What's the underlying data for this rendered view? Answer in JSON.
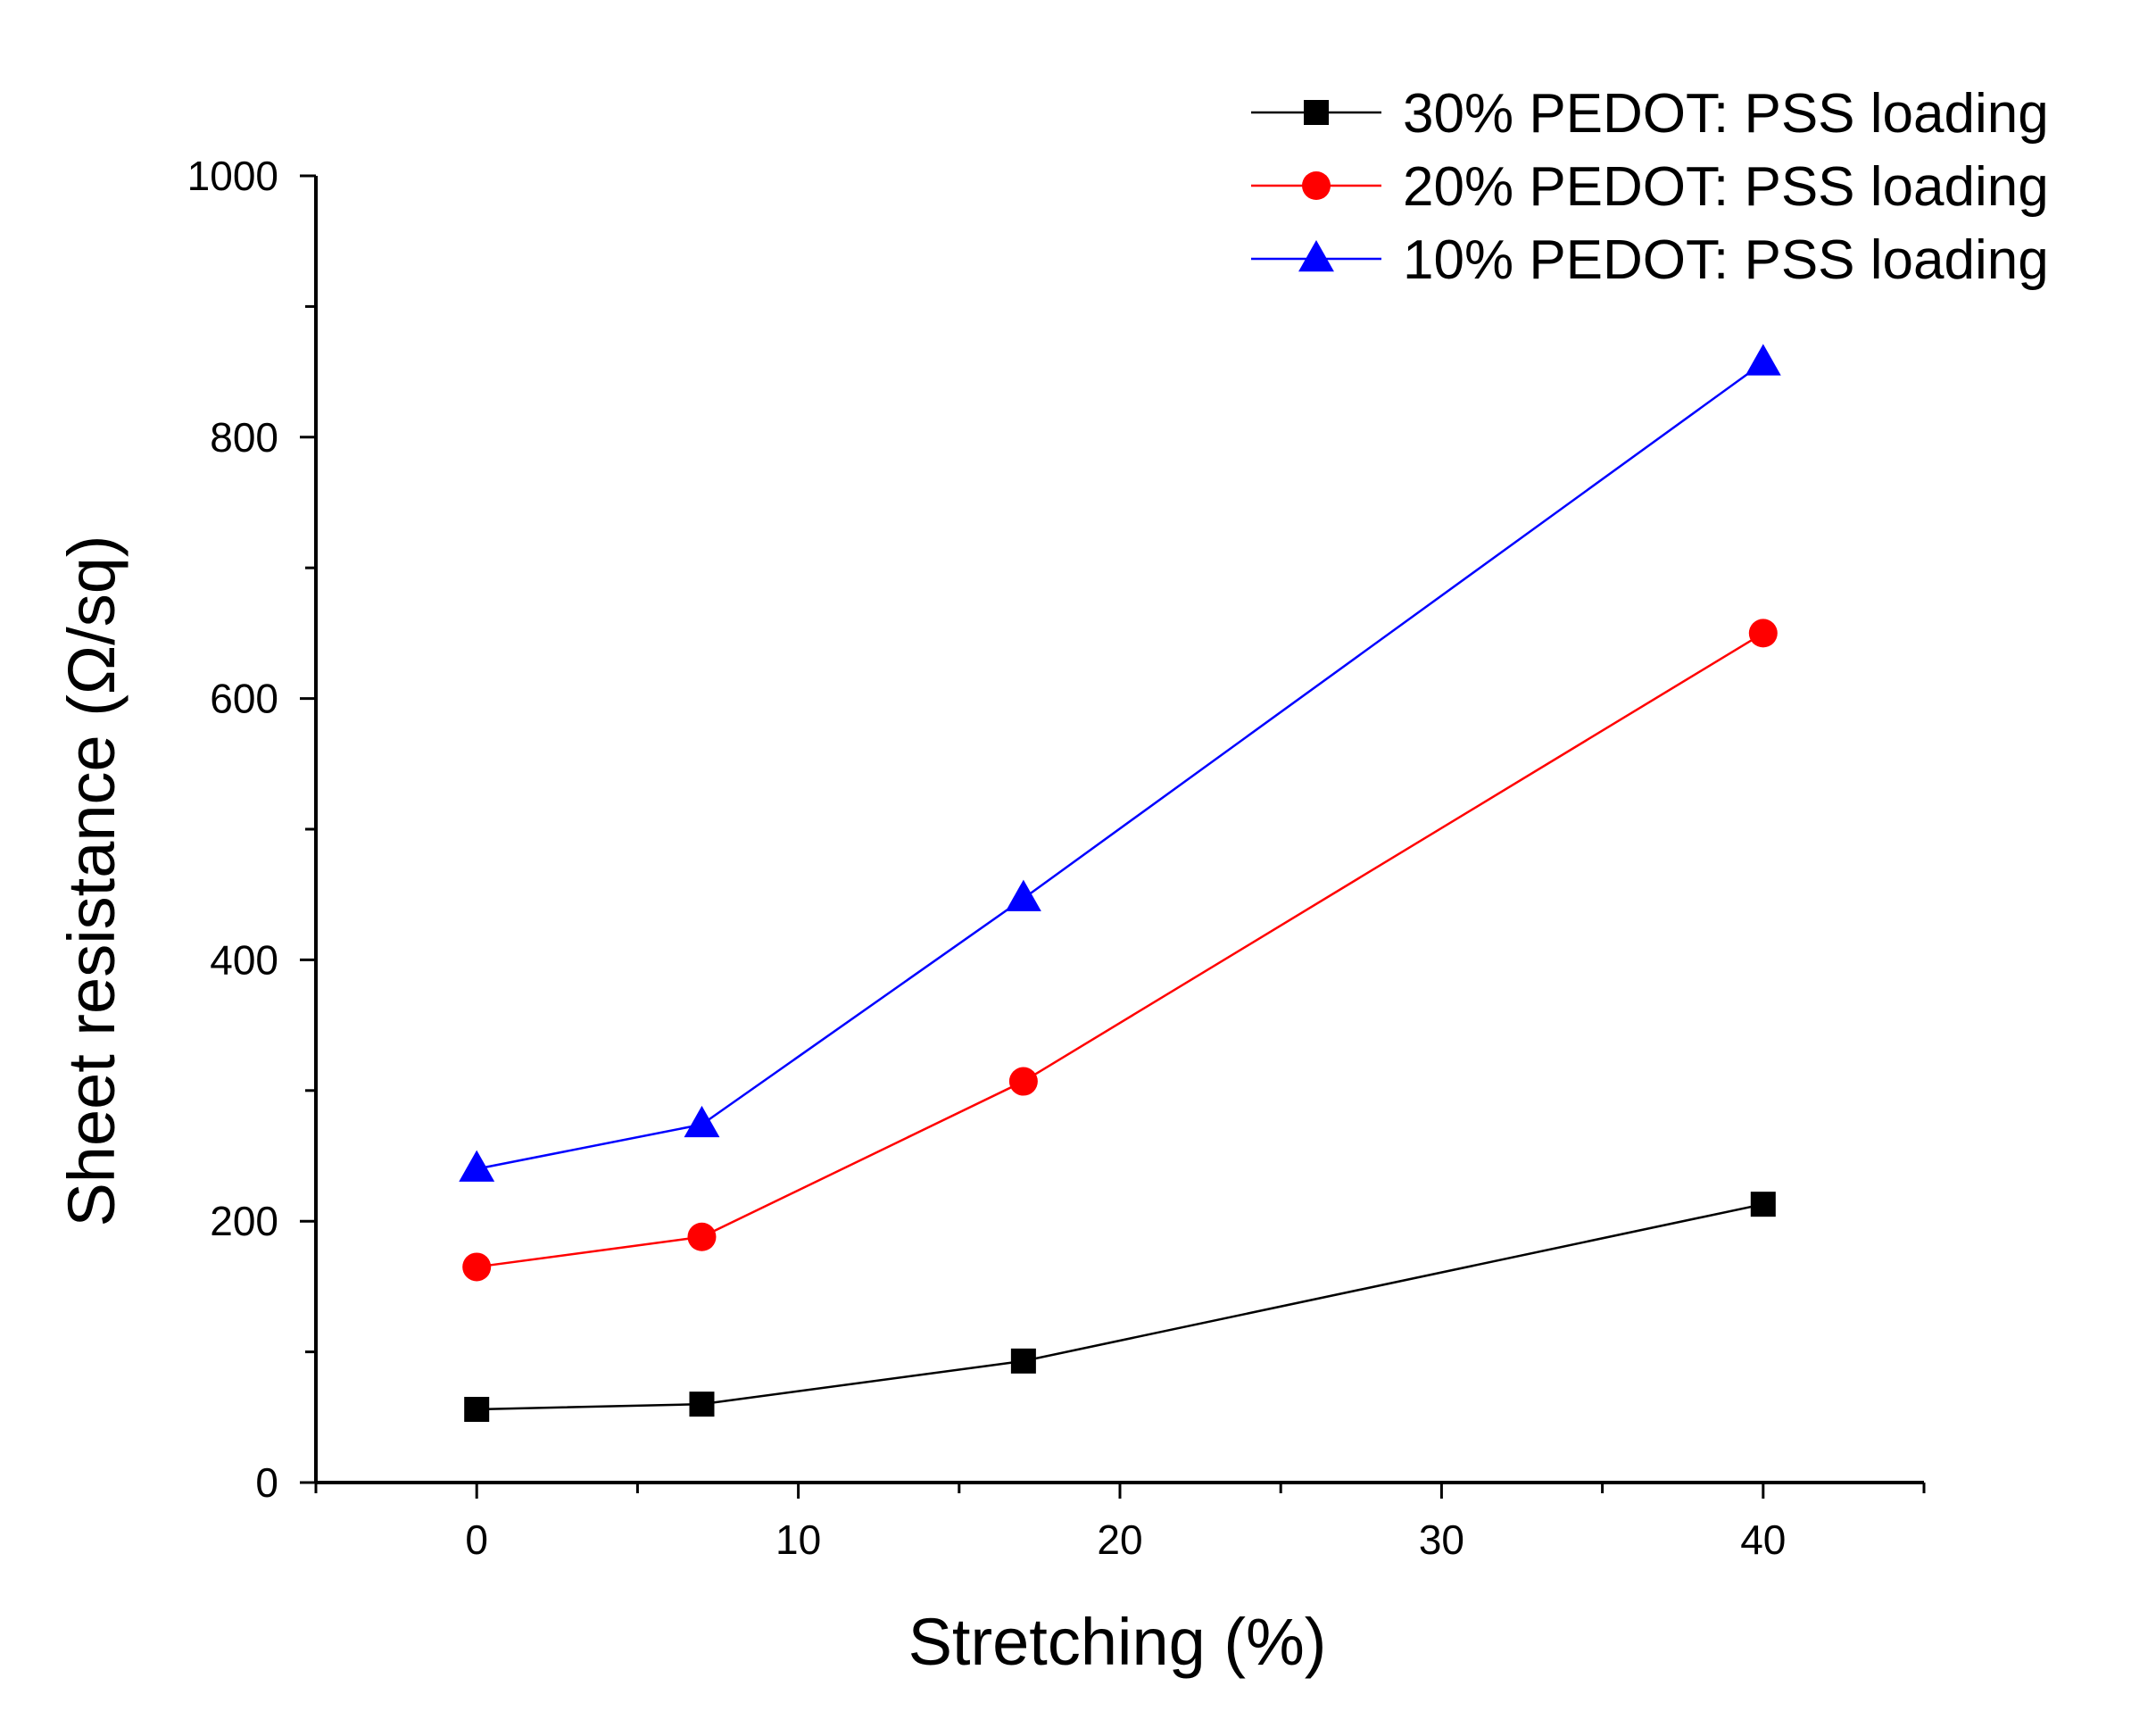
{
  "chart_data": {
    "type": "line",
    "title": "",
    "xlabel": "Stretching (%)",
    "ylabel": "Sheet resistance (Ω/sq)",
    "xlim": [
      -5,
      45
    ],
    "ylim": [
      0,
      1000
    ],
    "x_ticks": [
      0,
      10,
      20,
      30,
      40
    ],
    "x_minor_ticks": [
      -5,
      5,
      15,
      25,
      35,
      45
    ],
    "y_ticks": [
      0,
      200,
      400,
      600,
      800,
      1000
    ],
    "y_minor_ticks": [
      100,
      300,
      500,
      700,
      900
    ],
    "grid": false,
    "legend_position": "top-right",
    "x": [
      0,
      7,
      17,
      40
    ],
    "series": [
      {
        "name": "30% PEDOT: PSS loading",
        "values": [
          56,
          60,
          93,
          213
        ],
        "color": "#000000",
        "marker": "square"
      },
      {
        "name": "20% PEDOT: PSS loading",
        "values": [
          165,
          188,
          307,
          650
        ],
        "color": "#ff0000",
        "marker": "circle"
      },
      {
        "name": "10% PEDOT: PSS loading",
        "values": [
          240,
          274,
          447,
          857
        ],
        "color": "#0000ff",
        "marker": "triangle"
      }
    ]
  }
}
